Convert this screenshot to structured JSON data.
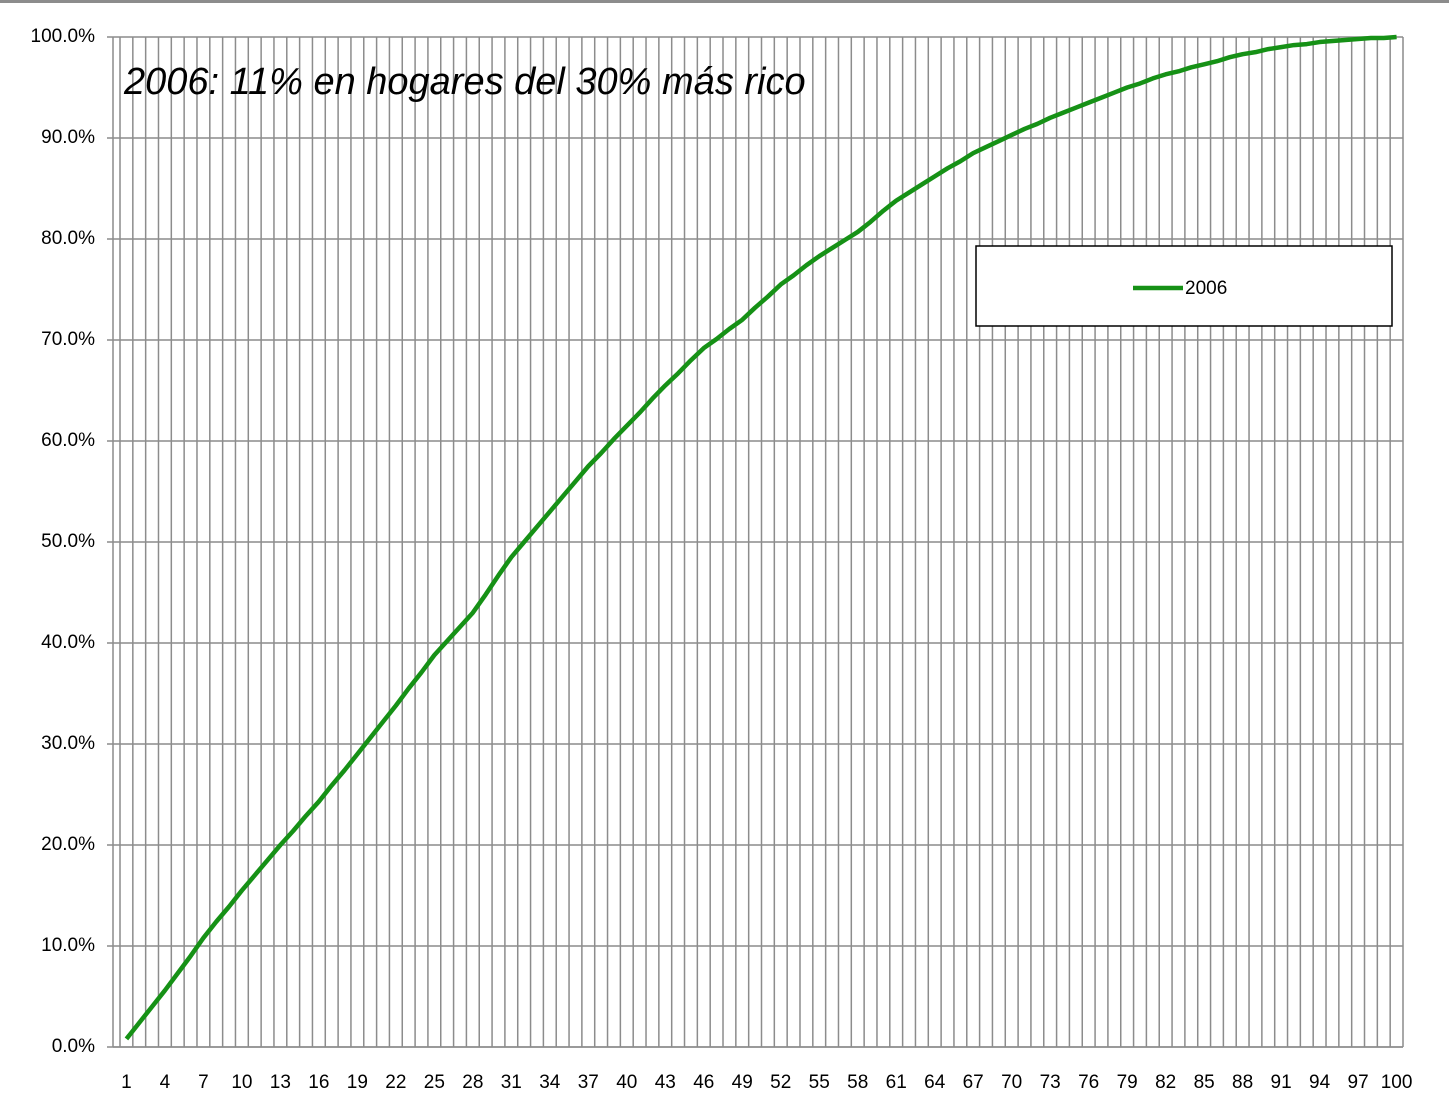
{
  "chart_data": {
    "type": "line",
    "annotation": "2006: 11% en hogares del 30% más rico",
    "categories": [
      1,
      null,
      null,
      4,
      null,
      null,
      7,
      null,
      null,
      10,
      null,
      null,
      13,
      null,
      null,
      16,
      null,
      null,
      19,
      null,
      null,
      22,
      null,
      null,
      25,
      null,
      null,
      28,
      null,
      null,
      31,
      null,
      null,
      34,
      null,
      null,
      37,
      null,
      null,
      40,
      null,
      null,
      43,
      null,
      null,
      46,
      null,
      null,
      49,
      null,
      null,
      52,
      null,
      null,
      55,
      null,
      null,
      58,
      null,
      null,
      61,
      null,
      null,
      64,
      null,
      null,
      67,
      null,
      null,
      70,
      null,
      null,
      73,
      null,
      null,
      76,
      null,
      null,
      79,
      null,
      null,
      82,
      null,
      null,
      85,
      null,
      null,
      88,
      null,
      null,
      91,
      null,
      null,
      94,
      null,
      null,
      97,
      null,
      null,
      100
    ],
    "series": [
      {
        "name": "2006",
        "color": "#169116",
        "values": [
          0.8,
          2.4,
          4.0,
          5.6,
          7.3,
          9.0,
          10.8,
          12.4,
          13.9,
          15.5,
          17.0,
          18.5,
          20.0,
          21.4,
          22.9,
          24.3,
          25.9,
          27.4,
          29.0,
          30.6,
          32.2,
          33.8,
          35.5,
          37.1,
          38.8,
          40.2,
          41.6,
          43.0,
          44.8,
          46.7,
          48.5,
          50.0,
          51.5,
          53.0,
          54.5,
          56.0,
          57.5,
          58.8,
          60.2,
          61.5,
          62.8,
          64.2,
          65.5,
          66.7,
          68.0,
          69.2,
          70.1,
          71.1,
          72.0,
          73.2,
          74.3,
          75.5,
          76.4,
          77.4,
          78.3,
          79.1,
          79.9,
          80.7,
          81.7,
          82.8,
          83.8,
          84.6,
          85.4,
          86.2,
          87.0,
          87.7,
          88.5,
          89.1,
          89.7,
          90.3,
          90.9,
          91.4,
          92.0,
          92.5,
          93.0,
          93.5,
          94.0,
          94.5,
          95.0,
          95.4,
          95.9,
          96.3,
          96.6,
          97.0,
          97.3,
          97.6,
          98.0,
          98.3,
          98.5,
          98.8,
          99.0,
          99.2,
          99.3,
          99.5,
          99.6,
          99.7,
          99.8,
          99.9,
          99.9,
          100
        ]
      }
    ],
    "ylim": [
      0,
      100
    ],
    "yticks": [
      {
        "value": 0,
        "label": "0.0%"
      },
      {
        "value": 10,
        "label": "10.0%"
      },
      {
        "value": 20,
        "label": "20.0%"
      },
      {
        "value": 30,
        "label": "30.0%"
      },
      {
        "value": 40,
        "label": "40.0%"
      },
      {
        "value": 50,
        "label": "50.0%"
      },
      {
        "value": 60,
        "label": "60.0%"
      },
      {
        "value": 70,
        "label": "70.0%"
      },
      {
        "value": 80,
        "label": "80.0%"
      },
      {
        "value": 90,
        "label": "90.0%"
      },
      {
        "value": 100,
        "label": "100.0%"
      }
    ],
    "grid": true,
    "legend": "upper right"
  }
}
